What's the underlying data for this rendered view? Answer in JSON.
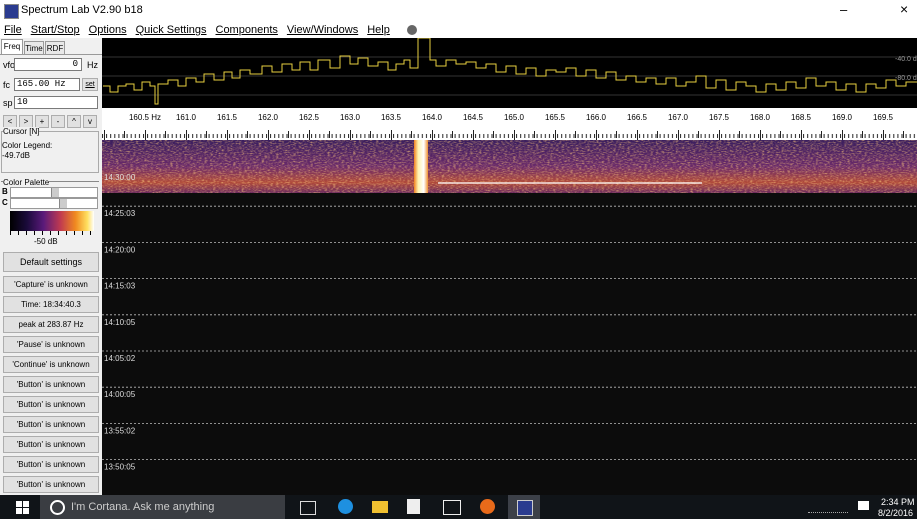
{
  "window": {
    "title": "Spectrum Lab V2.90 b18",
    "minimize": "–",
    "close": "×"
  },
  "menu": [
    "File",
    "Start/Stop",
    "Options",
    "Quick Settings",
    "Components",
    "View/Windows",
    "Help"
  ],
  "tabs": [
    "Freq",
    "Time",
    "RDF"
  ],
  "fields": {
    "vfo_label": "vfo",
    "vfo_value": "0",
    "vfo_unit": "Hz",
    "fc_label": "fc",
    "fc_value": "165.00 Hz",
    "set": "set",
    "sp_label": "sp",
    "sp_value": "10"
  },
  "nav_buttons": [
    "<",
    ">",
    "+",
    "-",
    "^",
    "v"
  ],
  "cursor": {
    "title": "Cursor [N]",
    "legend": "Color Legend:",
    "value": "-49.7dB"
  },
  "palette": {
    "title": "Color Palette",
    "b": "B",
    "c": "C",
    "scale": "-50 dB"
  },
  "default_button": "Default settings",
  "buttons": [
    "'Capture' is unknown",
    "Time:  18:34:40.3",
    "peak at 283.87 Hz",
    "'Pause' is unknown",
    "'Continue' is unknown",
    "'Button' is unknown",
    "'Button' is unknown",
    "'Button' is unknown",
    "'Button' is unknown",
    "'Button' is unknown",
    "'Button' is unknown"
  ],
  "spectrum": {
    "levels": [
      "-40.0 d",
      "-80.0 d"
    ],
    "freq_labels": [
      "160.5 Hz",
      "161.0",
      "161.5",
      "162.0",
      "162.5",
      "163.0",
      "163.5",
      "164.0",
      "164.5",
      "165.0",
      "165.5",
      "166.0",
      "166.5",
      "167.0",
      "167.5",
      "168.0",
      "168.5",
      "169.0",
      "169.5"
    ]
  },
  "waterfall": {
    "times": [
      "14:30:00",
      "14:25:03",
      "14:20:00",
      "14:15:03",
      "14:10:05",
      "14:05:02",
      "14:00:05",
      "13:55:02",
      "13:50:05"
    ]
  },
  "taskbar": {
    "search": "I'm Cortana. Ask me anything",
    "time": "2:34 PM",
    "date": "8/2/2016"
  }
}
